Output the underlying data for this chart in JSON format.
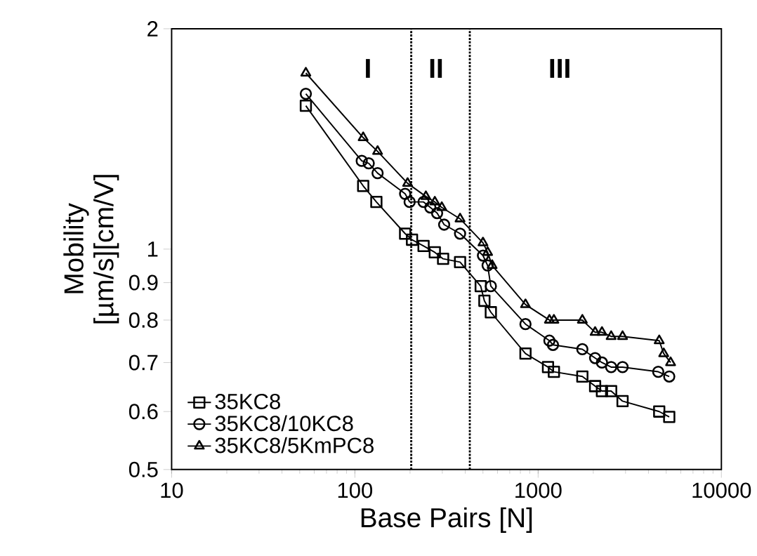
{
  "chart_data": {
    "type": "line",
    "xlabel": "Base Pairs [N]",
    "ylabel": "Mobility [µm/s][cm/V]",
    "log": "xy",
    "xlim": [
      10,
      10000
    ],
    "ylim": [
      0.5,
      2
    ],
    "xticks": [
      10,
      100,
      1000,
      10000
    ],
    "yticks": [
      0.5,
      0.6,
      0.7,
      0.8,
      0.9,
      1,
      2
    ],
    "legend": "bottom left",
    "grid": false,
    "line_style": "solid",
    "ref_lines": [
      {
        "axis": "x",
        "value": 203,
        "line_style": "dotted",
        "color": "#000000"
      },
      {
        "axis": "x",
        "value": 424,
        "line_style": "dotted",
        "color": "#000000"
      }
    ],
    "annotations": [
      "I",
      "II",
      "III"
    ],
    "series": [
      {
        "name": "35KC8",
        "color": "#000000",
        "marker": "square",
        "x": [
          54,
          111,
          131,
          188,
          205,
          237,
          273,
          303,
          375,
          486,
          509,
          552,
          853,
          1132,
          1219,
          1743,
          2046,
          2230,
          2503,
          2889,
          4579,
          5193
        ],
        "values": [
          1.57,
          1.22,
          1.16,
          1.05,
          1.03,
          1.01,
          0.99,
          0.97,
          0.96,
          0.89,
          0.85,
          0.82,
          0.72,
          0.69,
          0.68,
          0.67,
          0.65,
          0.64,
          0.64,
          0.62,
          0.6,
          0.59
        ]
      },
      {
        "name": "35KC8/10KC8",
        "color": "#000000",
        "marker": "circle",
        "x": [
          54,
          109,
          119,
          133,
          188,
          199,
          237,
          258,
          281,
          307,
          375,
          500,
          530,
          552,
          853,
          1152,
          1205,
          1743,
          2046,
          2230,
          2503,
          2889,
          4523,
          5193
        ],
        "values": [
          1.63,
          1.32,
          1.31,
          1.27,
          1.19,
          1.16,
          1.16,
          1.14,
          1.12,
          1.08,
          1.05,
          0.98,
          0.95,
          0.89,
          0.79,
          0.75,
          0.74,
          0.73,
          0.71,
          0.7,
          0.69,
          0.69,
          0.68,
          0.67
        ]
      },
      {
        "name": "35KC8/5KmPC8",
        "color": "#000000",
        "marker": "triangle",
        "x": [
          54,
          111,
          133,
          194,
          244,
          273,
          298,
          375,
          500,
          530,
          561,
          853,
          1152,
          1219,
          1743,
          2046,
          2230,
          2503,
          2889,
          4579,
          4846,
          5283
        ],
        "values": [
          1.74,
          1.42,
          1.36,
          1.23,
          1.18,
          1.16,
          1.14,
          1.1,
          1.02,
          0.99,
          0.95,
          0.84,
          0.8,
          0.8,
          0.8,
          0.77,
          0.77,
          0.76,
          0.76,
          0.75,
          0.72,
          0.7
        ]
      }
    ]
  }
}
